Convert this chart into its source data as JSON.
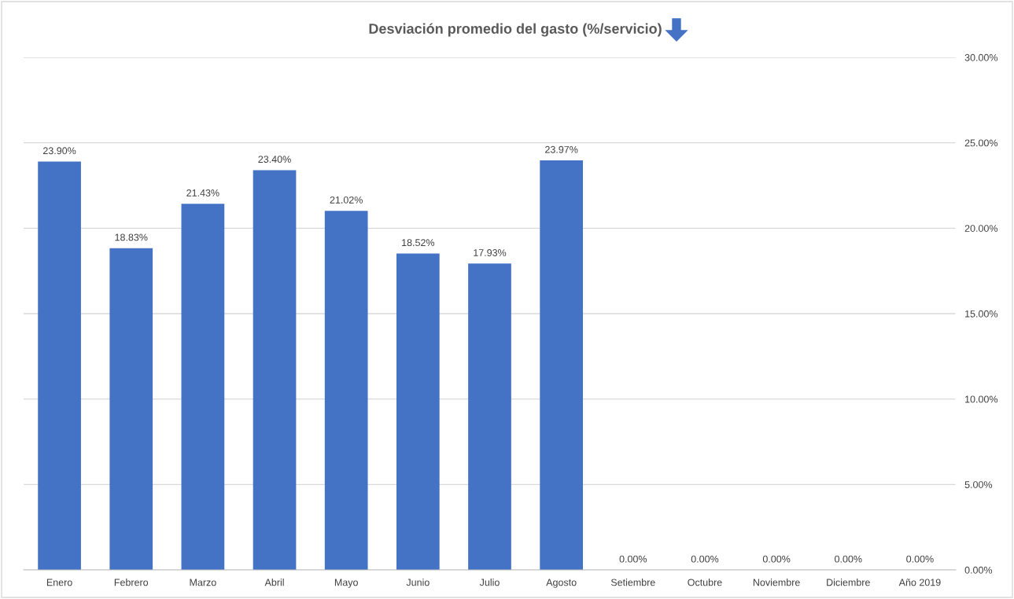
{
  "chart_data": {
    "type": "bar",
    "title": "Desviación promedio del gasto (%/servicio)",
    "categories": [
      "Enero",
      "Febrero",
      "Marzo",
      "Abril",
      "Mayo",
      "Junio",
      "Julio",
      "Agosto",
      "Setiembre",
      "Octubre",
      "Noviembre",
      "Diciembre",
      "Año 2019"
    ],
    "values": [
      23.9,
      18.83,
      21.43,
      23.4,
      21.02,
      18.52,
      17.93,
      23.97,
      0,
      0,
      0,
      0,
      0
    ],
    "value_labels": [
      "23.90%",
      "18.83%",
      "21.43%",
      "23.40%",
      "21.02%",
      "18.52%",
      "17.93%",
      "23.97%",
      "0.00%",
      "0.00%",
      "0.00%",
      "0.00%",
      "0.00%"
    ],
    "color": "#4472c4",
    "ylim": [
      0,
      30
    ],
    "yticks": [
      {
        "value": 0,
        "label": "0.00%"
      },
      {
        "value": 5,
        "label": "5.00%"
      },
      {
        "value": 10,
        "label": "10.00%"
      },
      {
        "value": 15,
        "label": "15.00%"
      },
      {
        "value": 20,
        "label": "20.00%"
      },
      {
        "value": 25,
        "label": "25.00%"
      },
      {
        "value": 30,
        "label": "30.00%"
      }
    ],
    "grid": "y"
  }
}
